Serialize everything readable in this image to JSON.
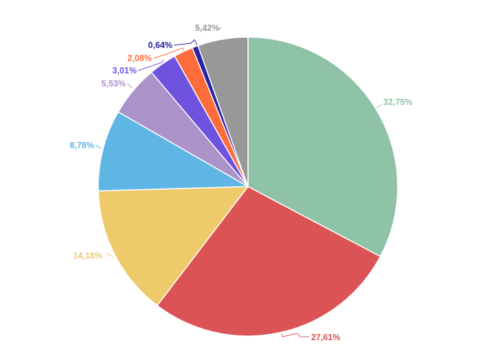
{
  "chart_data": {
    "type": "pie",
    "start": "12 o'clock, clockwise",
    "slices": [
      {
        "label": "32,75%",
        "value": 32.75,
        "color": "#8fc3a7"
      },
      {
        "label": "27,61%",
        "value": 27.61,
        "color": "#dc5356"
      },
      {
        "label": "14,18%",
        "value": 14.18,
        "color": "#eeca6a"
      },
      {
        "label": "8,78%",
        "value": 8.78,
        "color": "#5fb6e5"
      },
      {
        "label": "5,53%",
        "value": 5.53,
        "color": "#ab92c9"
      },
      {
        "label": "3,01%",
        "value": 3.01,
        "color": "#6e53de"
      },
      {
        "label": "2,08%",
        "value": 2.08,
        "color": "#fe6c3c"
      },
      {
        "label": "0,64%",
        "value": 0.64,
        "color": "#2721a8"
      },
      {
        "label": "5,42%",
        "value": 5.42,
        "color": "#989898"
      }
    ]
  }
}
